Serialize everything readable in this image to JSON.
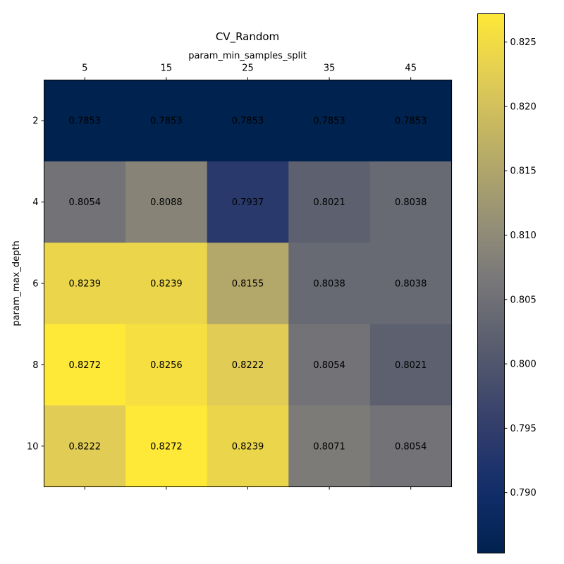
{
  "chart_data": {
    "type": "heatmap",
    "title": "CV_Random",
    "xlabel": "param_min_samples_split",
    "ylabel": "param_max_depth",
    "x_categories": [
      "5",
      "15",
      "25",
      "35",
      "45"
    ],
    "y_categories": [
      "2",
      "4",
      "6",
      "8",
      "10"
    ],
    "values": [
      [
        0.7853,
        0.7853,
        0.7853,
        0.7853,
        0.7853
      ],
      [
        0.8054,
        0.8088,
        0.7937,
        0.8021,
        0.8038
      ],
      [
        0.8239,
        0.8239,
        0.8155,
        0.8038,
        0.8038
      ],
      [
        0.8272,
        0.8256,
        0.8222,
        0.8054,
        0.8021
      ],
      [
        0.8222,
        0.8272,
        0.8239,
        0.8071,
        0.8054
      ]
    ],
    "colormap": "cividis",
    "colorbar": {
      "vmin": 0.7853,
      "vmax": 0.8272,
      "ticks": [
        "0.790",
        "0.795",
        "0.800",
        "0.805",
        "0.810",
        "0.815",
        "0.820",
        "0.825"
      ]
    },
    "x_axis_position": "top",
    "grid": false
  }
}
